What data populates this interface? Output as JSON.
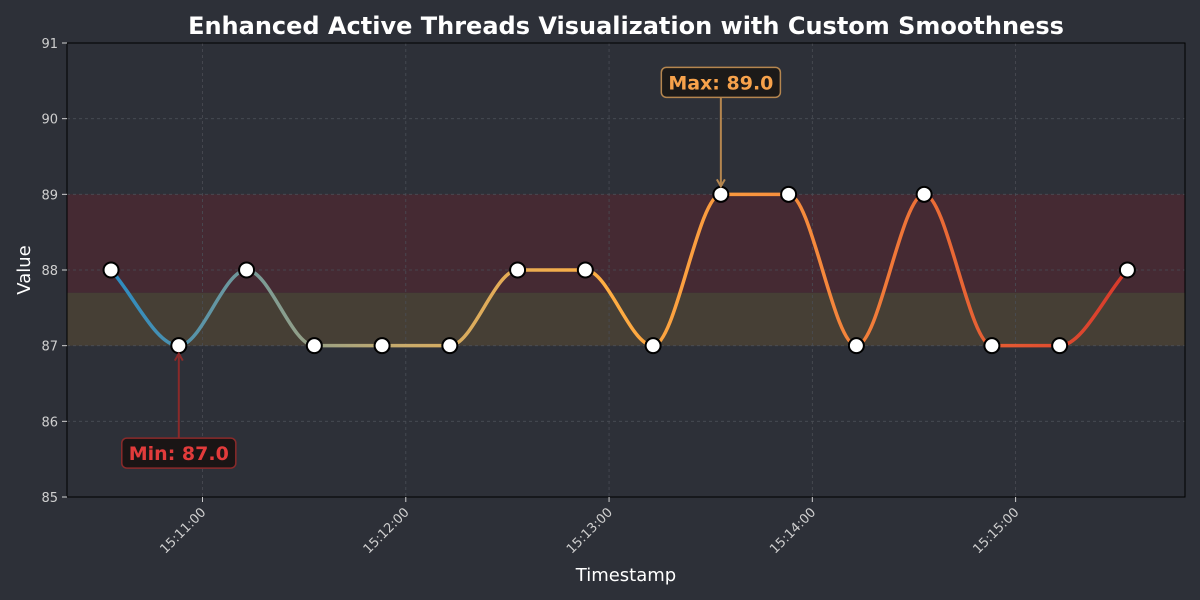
{
  "chart_data": {
    "type": "line",
    "title": "Enhanced Active Threads Visualization with Custom Smoothness",
    "xlabel": "Timestamp",
    "ylabel": "Value",
    "ylim": [
      85,
      91
    ],
    "yticks": [
      85,
      86,
      87,
      88,
      89,
      90,
      91
    ],
    "xlim": [
      "15:10:20",
      "15:15:50"
    ],
    "xticks": [
      "15:11:00",
      "15:12:00",
      "15:13:00",
      "15:14:00",
      "15:15:00"
    ],
    "grid": true,
    "legend": "none",
    "x": [
      "15:10:33",
      "15:10:53",
      "15:11:13",
      "15:11:33",
      "15:11:53",
      "15:12:13",
      "15:12:33",
      "15:12:53",
      "15:13:13",
      "15:13:33",
      "15:13:53",
      "15:14:13",
      "15:14:33",
      "15:14:53",
      "15:15:13",
      "15:15:33"
    ],
    "series": [
      {
        "values": [
          88,
          87,
          88,
          87,
          87,
          87,
          88,
          88,
          87,
          89,
          89,
          87,
          89,
          87,
          87,
          88
        ]
      }
    ],
    "bands": [
      {
        "from": 87,
        "to": 87.7,
        "color": "#463f35"
      },
      {
        "from": 87.7,
        "to": 89,
        "color": "#452a33"
      }
    ],
    "annotations": [
      {
        "label": "Max: 89.0",
        "x": "15:13:33",
        "y": 89,
        "text_y": 90.48,
        "color": "#f7a24b",
        "bg": "#1c1a19",
        "border": "#b5864f"
      },
      {
        "label": "Min: 87.0",
        "x": "15:10:53",
        "y": 87,
        "text_y": 85.58,
        "color": "#e23b3b",
        "bg": "#1a1515",
        "border": "#8a2a2a"
      }
    ],
    "colors": {
      "background": "#2d3038",
      "grid": "#4a4d55",
      "axis": "#000000",
      "marker_fill": "#ffffff",
      "marker_edge": "#000000",
      "gradient": [
        "#2e8bc0",
        "#c9ab6b",
        "#ffae42",
        "#f4833b",
        "#d7382b"
      ]
    }
  }
}
